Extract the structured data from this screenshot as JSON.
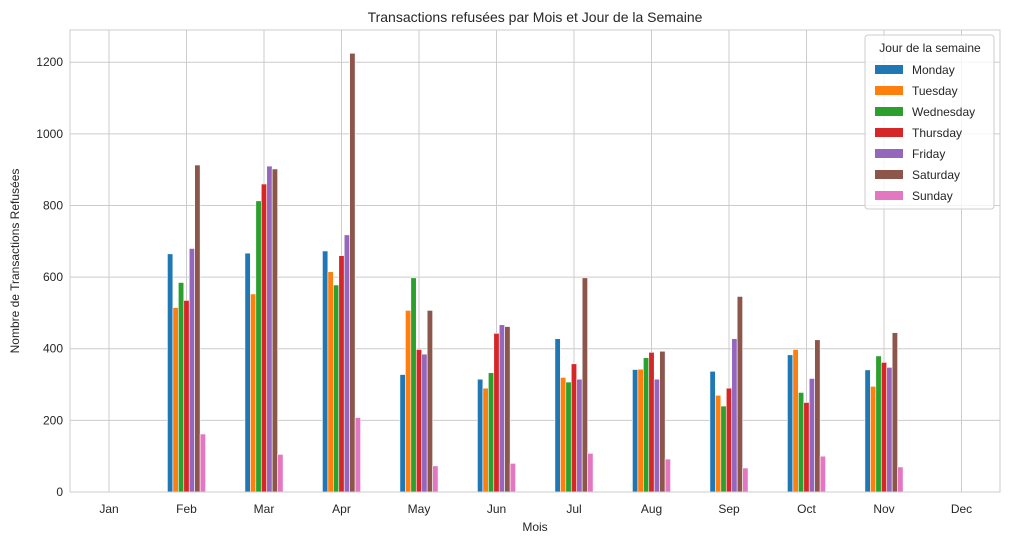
{
  "chart_data": {
    "type": "bar",
    "title": "Transactions refusées par Mois et Jour de la Semaine",
    "xlabel": "Mois",
    "ylabel": "Nombre de Transactions Refusées",
    "ylim": [
      0,
      1290
    ],
    "yticks": [
      0,
      200,
      400,
      600,
      800,
      1000,
      1200
    ],
    "grid": true,
    "legend_title": "Jour de la semaine",
    "legend_position": "top-right",
    "categories": [
      "Jan",
      "Feb",
      "Mar",
      "Apr",
      "May",
      "Jun",
      "Jul",
      "Aug",
      "Sep",
      "Oct",
      "Nov",
      "Dec"
    ],
    "series": [
      {
        "name": "Monday",
        "color": "#1f77b4",
        "values": [
          null,
          665,
          667,
          673,
          328,
          315,
          428,
          342,
          337,
          383,
          341,
          null
        ]
      },
      {
        "name": "Tuesday",
        "color": "#ff7f0e",
        "values": [
          null,
          515,
          553,
          615,
          507,
          290,
          320,
          343,
          270,
          398,
          295,
          null
        ]
      },
      {
        "name": "Wednesday",
        "color": "#2ca02c",
        "values": [
          null,
          585,
          813,
          578,
          598,
          333,
          307,
          375,
          240,
          278,
          380,
          null
        ]
      },
      {
        "name": "Thursday",
        "color": "#d62728",
        "values": [
          null,
          535,
          860,
          660,
          398,
          443,
          358,
          390,
          290,
          250,
          362,
          null
        ]
      },
      {
        "name": "Friday",
        "color": "#9467bd",
        "values": [
          null,
          680,
          910,
          718,
          385,
          467,
          315,
          315,
          428,
          317,
          348,
          null
        ]
      },
      {
        "name": "Saturday",
        "color": "#8c564b",
        "values": [
          null,
          913,
          902,
          1225,
          507,
          462,
          598,
          393,
          546,
          425,
          445,
          null
        ]
      },
      {
        "name": "Sunday",
        "color": "#e377c2",
        "values": [
          null,
          162,
          105,
          208,
          73,
          80,
          108,
          92,
          67,
          100,
          70,
          null
        ]
      }
    ]
  }
}
